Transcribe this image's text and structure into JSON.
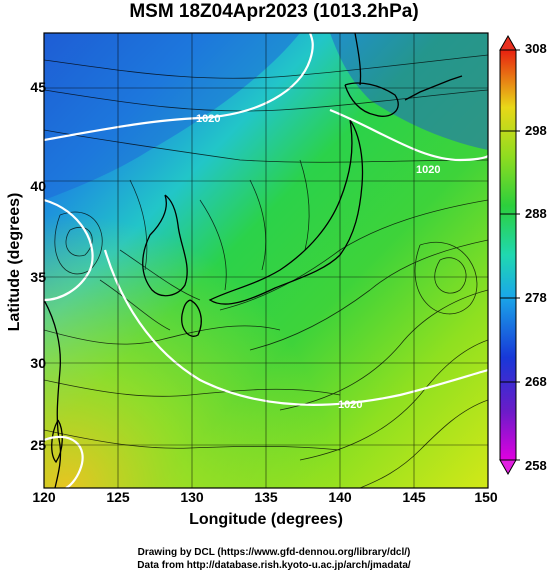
{
  "title": "MSM 18Z04Apr2023 (1013.2hPa)",
  "x_axis": {
    "label": "Longitude (degrees)",
    "ticks": [
      "120",
      "125",
      "130",
      "135",
      "140",
      "145",
      "150"
    ]
  },
  "y_axis": {
    "label": "Latitude  (degrees)",
    "ticks": [
      "45",
      "40",
      "35",
      "30",
      "25"
    ]
  },
  "colorbar": {
    "ticks": [
      "308",
      "298",
      "288",
      "278",
      "268",
      "258"
    ]
  },
  "contour_labels": [
    "1020",
    "1020",
    "1020"
  ],
  "credits": {
    "line1": "Drawing by DCL (https://www.gfd-dennou.org/library/dcl/)",
    "line2": "Data from http://database.rish.kyoto-u.ac.jp/arch/jmadata/"
  },
  "colors": {
    "cold": "#1e5ad2",
    "cool": "#21c0d8",
    "mild": "#2ecf45",
    "warm": "#c8e81a",
    "hot": "#f2c21a",
    "land_outline": "#000000",
    "isobar": "#ffffff"
  }
}
